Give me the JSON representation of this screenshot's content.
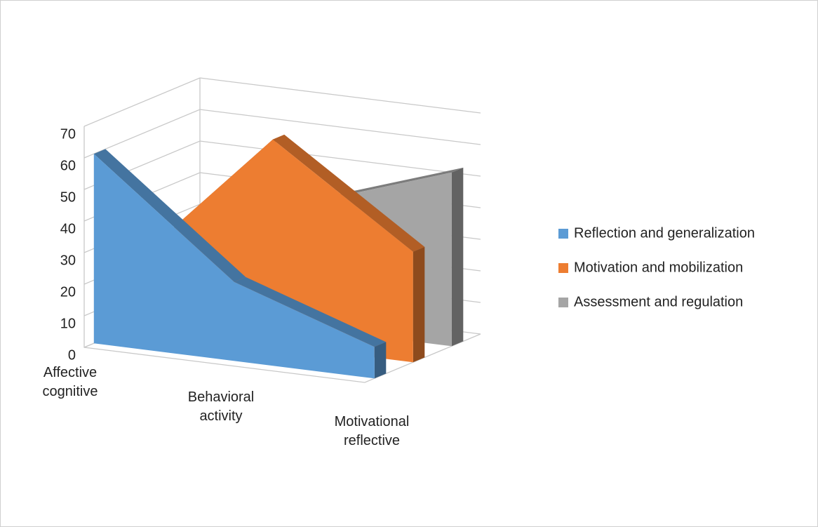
{
  "chart_data": {
    "type": "area3d",
    "categories": [
      "Affective cognitive",
      "Behavioral activity",
      "Motivational reflective"
    ],
    "series": [
      {
        "name": "Reflection and generalization",
        "color": "#5b9bd5",
        "values": [
          60,
          25,
          10
        ]
      },
      {
        "name": "Motivation and mobilization",
        "color": "#ed7d31",
        "values": [
          20,
          65,
          35
        ]
      },
      {
        "name": "Assessment and regulation",
        "color": "#a5a5a5",
        "values": [
          15,
          40,
          55
        ]
      }
    ],
    "ylim": [
      0,
      70
    ],
    "yticks": [
      0,
      10,
      20,
      30,
      40,
      50,
      60,
      70
    ],
    "grid": true,
    "legend": "right"
  }
}
